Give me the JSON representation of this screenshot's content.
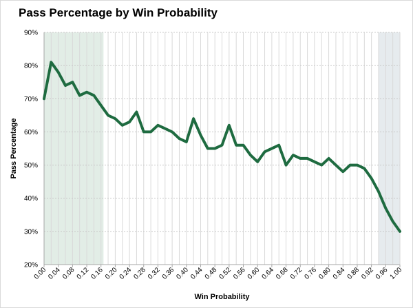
{
  "chart_data": {
    "type": "line",
    "title": "Pass Percentage by Win Probability",
    "xlabel": "Win Probability",
    "ylabel": "Pass Percentage",
    "xlim": [
      0.0,
      1.0
    ],
    "ylim": [
      0.2,
      0.9
    ],
    "x_ticks": [
      "0.00",
      "0.04",
      "0.08",
      "0.12",
      "0.16",
      "0.20",
      "0.24",
      "0.28",
      "0.32",
      "0.36",
      "0.40",
      "0.44",
      "0.48",
      "0.52",
      "0.56",
      "0.60",
      "0.64",
      "0.68",
      "0.72",
      "0.76",
      "0.80",
      "0.84",
      "0.88",
      "0.92",
      "0.96",
      "1.00"
    ],
    "y_ticks": [
      "20%",
      "30%",
      "40%",
      "50%",
      "60%",
      "70%",
      "80%",
      "90%"
    ],
    "grid": {
      "horizontal": true,
      "vertical": true
    },
    "shaded_regions": [
      {
        "from": 0.0,
        "to": 0.167,
        "color": "#e2ede6"
      },
      {
        "from": 0.94,
        "to": 1.0,
        "color": "#e6ebee"
      }
    ],
    "series": [
      {
        "color": "#1e6b40",
        "x": [
          0.0,
          0.02,
          0.04,
          0.06,
          0.08,
          0.1,
          0.12,
          0.14,
          0.16,
          0.18,
          0.2,
          0.22,
          0.24,
          0.26,
          0.28,
          0.3,
          0.32,
          0.34,
          0.36,
          0.38,
          0.4,
          0.42,
          0.44,
          0.46,
          0.48,
          0.5,
          0.52,
          0.54,
          0.56,
          0.58,
          0.6,
          0.62,
          0.64,
          0.66,
          0.68,
          0.7,
          0.72,
          0.74,
          0.76,
          0.78,
          0.8,
          0.82,
          0.84,
          0.86,
          0.88,
          0.9,
          0.92,
          0.94,
          0.96,
          0.98,
          1.0
        ],
        "y": [
          0.7,
          0.81,
          0.78,
          0.74,
          0.75,
          0.71,
          0.72,
          0.71,
          0.68,
          0.65,
          0.64,
          0.62,
          0.63,
          0.66,
          0.6,
          0.6,
          0.62,
          0.61,
          0.6,
          0.58,
          0.57,
          0.64,
          0.59,
          0.55,
          0.55,
          0.56,
          0.62,
          0.56,
          0.56,
          0.53,
          0.51,
          0.54,
          0.55,
          0.56,
          0.5,
          0.53,
          0.52,
          0.52,
          0.51,
          0.5,
          0.52,
          0.5,
          0.48,
          0.5,
          0.5,
          0.49,
          0.46,
          0.42,
          0.37,
          0.33,
          0.3
        ]
      }
    ]
  }
}
